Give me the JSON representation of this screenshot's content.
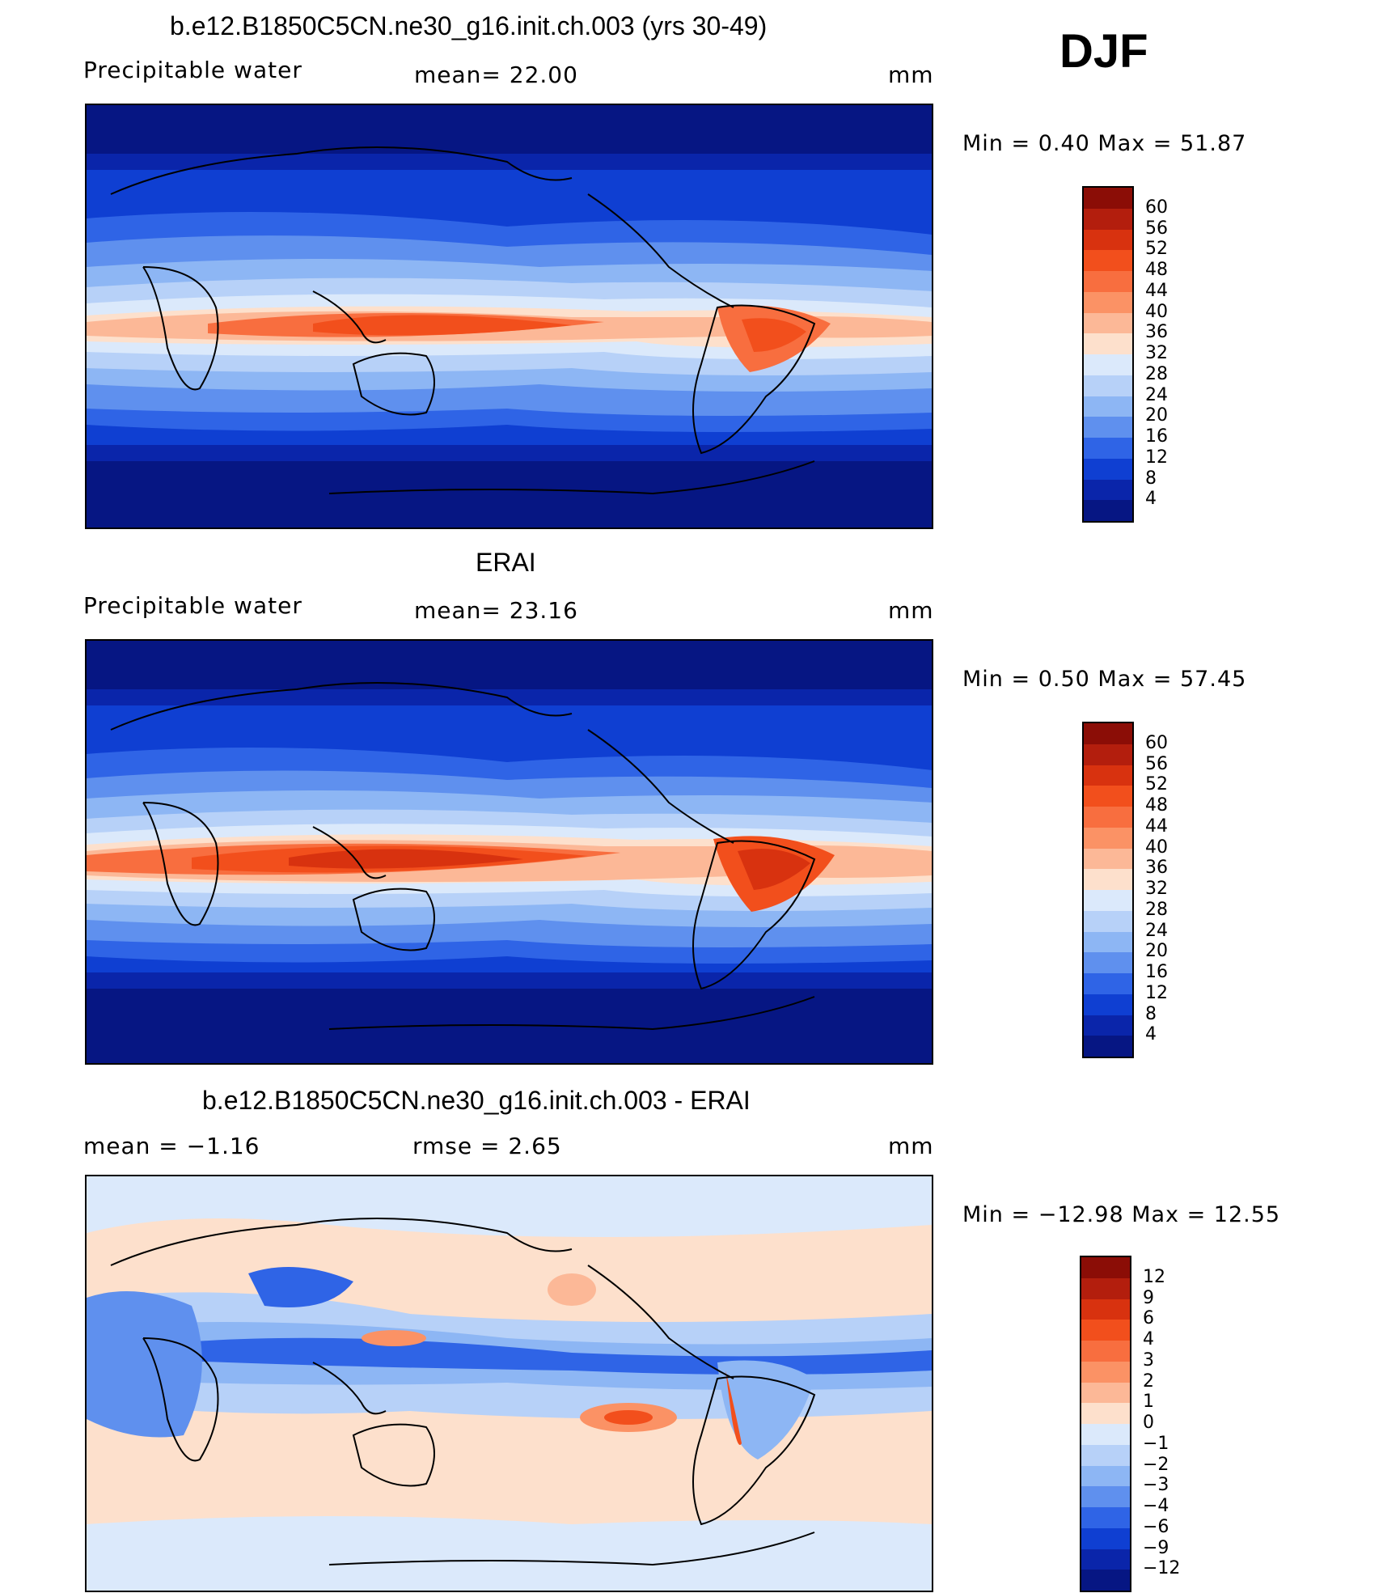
{
  "season": "DJF",
  "panels": [
    {
      "title": "b.e12.B1850C5CN.ne30_g16.init.ch.003 (yrs 30-49)",
      "left_label": "Precipitable  water",
      "center_label": "mean=   22.00",
      "units": "mm",
      "minmax": "Min  =     0.40  Max  =     51.87",
      "colorbar": {
        "ticks": [
          "60",
          "56",
          "52",
          "48",
          "44",
          "40",
          "36",
          "32",
          "28",
          "24",
          "20",
          "16",
          "12",
          "8",
          "4"
        ],
        "colors": [
          "#8b0d06",
          "#b31e0d",
          "#d8320f",
          "#f24f1c",
          "#f86e3f",
          "#fb9265",
          "#fcb897",
          "#fde0cc",
          "#dbe9fb",
          "#b7d1f8",
          "#8db6f4",
          "#5f90ee",
          "#2f64e6",
          "#0f3fd2",
          "#0a25aa",
          "#061683"
        ]
      }
    },
    {
      "title": "ERAI",
      "left_label": "Precipitable  water",
      "center_label": "mean=   23.16",
      "units": "mm",
      "minmax": "Min  =     0.50  Max  =     57.45",
      "colorbar": {
        "ticks": [
          "60",
          "56",
          "52",
          "48",
          "44",
          "40",
          "36",
          "32",
          "28",
          "24",
          "20",
          "16",
          "12",
          "8",
          "4"
        ],
        "colors": [
          "#8b0d06",
          "#b31e0d",
          "#d8320f",
          "#f24f1c",
          "#f86e3f",
          "#fb9265",
          "#fcb897",
          "#fde0cc",
          "#dbe9fb",
          "#b7d1f8",
          "#8db6f4",
          "#5f90ee",
          "#2f64e6",
          "#0f3fd2",
          "#0a25aa",
          "#061683"
        ]
      }
    },
    {
      "title": "b.e12.B1850C5CN.ne30_g16.init.ch.003 - ERAI",
      "left_label": "mean  =    −1.16",
      "center_label": "rmse  =     2.65",
      "units": "mm",
      "minmax": "Min  =  −12.98  Max  =     12.55",
      "colorbar": {
        "ticks": [
          "12",
          "9",
          "6",
          "4",
          "3",
          "2",
          "1",
          "0",
          "−1",
          "−2",
          "−3",
          "−4",
          "−6",
          "−9",
          "−12"
        ],
        "colors": [
          "#8b0d06",
          "#b31e0d",
          "#d8320f",
          "#f24f1c",
          "#f86e3f",
          "#fb9265",
          "#fcb897",
          "#fde0cc",
          "#dbe9fb",
          "#b7d1f8",
          "#8db6f4",
          "#5f90ee",
          "#2f64e6",
          "#0f3fd2",
          "#0a25aa",
          "#061683"
        ]
      }
    }
  ],
  "chart_data": [
    {
      "type": "heatmap",
      "title": "b.e12.B1850C5CN.ne30_g16.init.ch.003 (yrs 30-49)",
      "variable": "Precipitable  water",
      "units": "mm",
      "mean": 22.0,
      "min": 0.4,
      "max": 51.87,
      "contour_levels": [
        4,
        8,
        12,
        16,
        20,
        24,
        28,
        32,
        36,
        40,
        44,
        48,
        52,
        56,
        60
      ],
      "projection": "global cylindrical equidistant, centered on Pacific"
    },
    {
      "type": "heatmap",
      "title": "ERAI",
      "variable": "Precipitable  water",
      "units": "mm",
      "mean": 23.16,
      "min": 0.5,
      "max": 57.45,
      "contour_levels": [
        4,
        8,
        12,
        16,
        20,
        24,
        28,
        32,
        36,
        40,
        44,
        48,
        52,
        56,
        60
      ],
      "projection": "global cylindrical equidistant, centered on Pacific"
    },
    {
      "type": "heatmap",
      "title": "b.e12.B1850C5CN.ne30_g16.init.ch.003 - ERAI",
      "units": "mm",
      "mean": -1.16,
      "rmse": 2.65,
      "min": -12.98,
      "max": 12.55,
      "contour_levels": [
        -12,
        -9,
        -6,
        -4,
        -3,
        -2,
        -1,
        0,
        1,
        2,
        3,
        4,
        6,
        9,
        12
      ],
      "projection": "global cylindrical equidistant, centered on Pacific"
    }
  ]
}
